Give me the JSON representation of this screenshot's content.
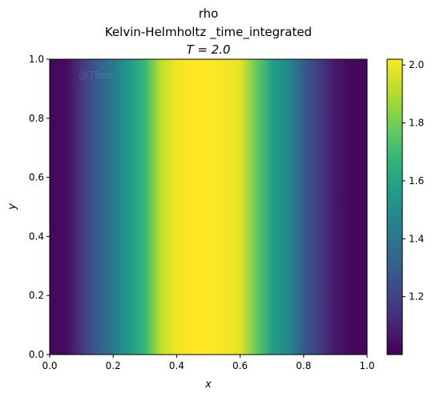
{
  "chart_data": {
    "type": "heatmap",
    "title_lines": [
      "rho",
      "Kelvin-Helmholtz _time_integrated"
    ],
    "time_label": "T = 2.0",
    "watermark": "@78ae",
    "xlabel": "x",
    "ylabel": "y",
    "xlim": [
      0.0,
      1.0
    ],
    "ylim": [
      0.0,
      1.0
    ],
    "x_ticks": [
      "0.0",
      "0.2",
      "0.4",
      "0.6",
      "0.8",
      "1.0"
    ],
    "y_ticks": [
      "0.0",
      "0.2",
      "0.4",
      "0.6",
      "0.8",
      "1.0"
    ],
    "colorbar": {
      "range": [
        1.0,
        2.02
      ],
      "ticks": [
        "1.2",
        "1.4",
        "1.6",
        "1.8",
        "2.0"
      ],
      "colormap": "viridis"
    },
    "field_profile": {
      "description_of_axis": "rho varies with x only (vertical bands)",
      "x": [
        0.0,
        0.05,
        0.1,
        0.15,
        0.2,
        0.25,
        0.3,
        0.35,
        0.4,
        0.45,
        0.5,
        0.55,
        0.6,
        0.65,
        0.7,
        0.75,
        0.8,
        0.85,
        0.9,
        0.95,
        1.0
      ],
      "rho": [
        1.02,
        1.03,
        1.16,
        1.3,
        1.42,
        1.55,
        1.68,
        1.92,
        2.0,
        2.02,
        2.02,
        2.01,
        1.98,
        1.78,
        1.58,
        1.48,
        1.3,
        1.18,
        1.07,
        1.02,
        1.02
      ]
    }
  },
  "colors": {
    "viridis_stops": [
      "#440154",
      "#482878",
      "#3e4989",
      "#31688e",
      "#26828e",
      "#1f9e89",
      "#35b779",
      "#6ece58",
      "#b5de2b",
      "#fde725"
    ]
  }
}
